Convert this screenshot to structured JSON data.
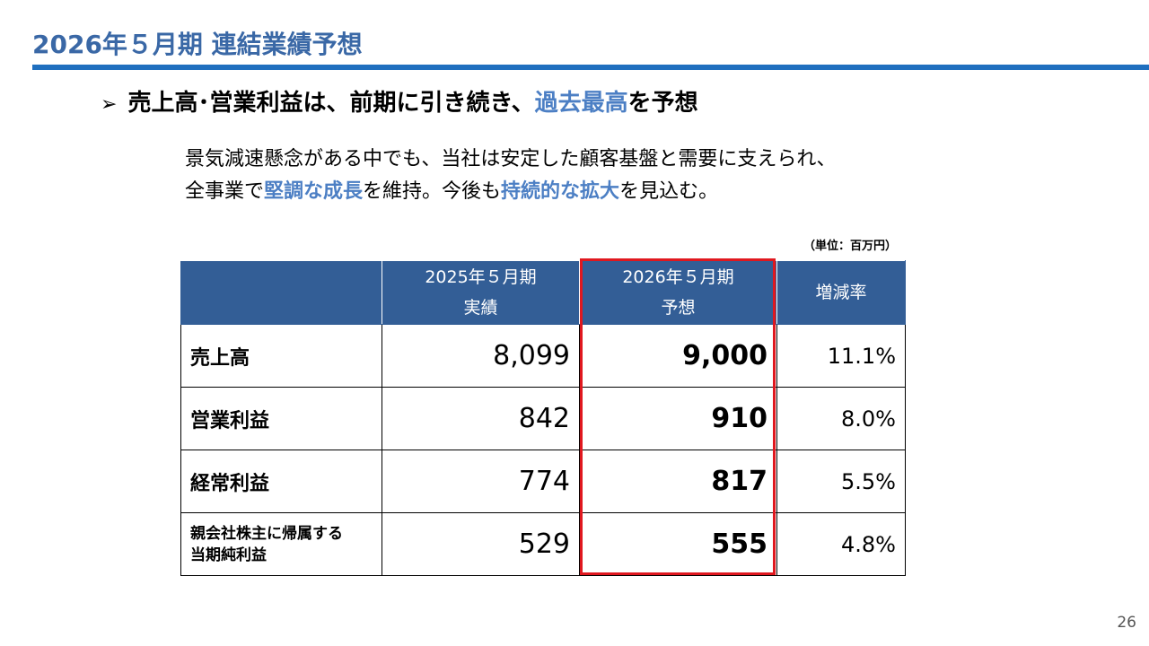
{
  "title": "2026年５月期 連結業績予想",
  "headline": {
    "bullet": "➢",
    "part1": "売上高･営業利益は、前期に引き続き、",
    "accent": "過去最高",
    "part2": "を予想"
  },
  "body": {
    "line1": "景気減速懸念がある中でも、当社は安定した顧客基盤と需要に支えられ、",
    "line2_a": "全事業で",
    "line2_b": "堅調な成長",
    "line2_c": "を維持。今後も",
    "line2_d": "持続的な拡大",
    "line2_e": "を見込む。"
  },
  "unit_note": "（単位：百万円）",
  "table": {
    "headers": [
      {
        "line1": "",
        "line2": ""
      },
      {
        "line1": "2025年５月期",
        "line2": "実績"
      },
      {
        "line1": "2026年５月期",
        "line2": "予想"
      },
      {
        "line1": "増減率",
        "line2": ""
      }
    ],
    "rows": [
      {
        "label1": "売上高",
        "label2": "",
        "actual": "8,099",
        "forecast": "9,000",
        "rate": "11.1%"
      },
      {
        "label1": "営業利益",
        "label2": "",
        "actual": "842",
        "forecast": "910",
        "rate": "8.0%"
      },
      {
        "label1": "経常利益",
        "label2": "",
        "actual": "774",
        "forecast": "817",
        "rate": "5.5%"
      },
      {
        "label1": "親会社株主に帰属する",
        "label2": "当期純利益",
        "actual": "529",
        "forecast": "555",
        "rate": "4.8%"
      }
    ]
  },
  "colors": {
    "title": "#3a68a6",
    "rule": "#1f6fbf",
    "accent": "#4c7fc4",
    "table_header": "#335e96",
    "highlight": "#e0181f"
  },
  "page_number": "26"
}
